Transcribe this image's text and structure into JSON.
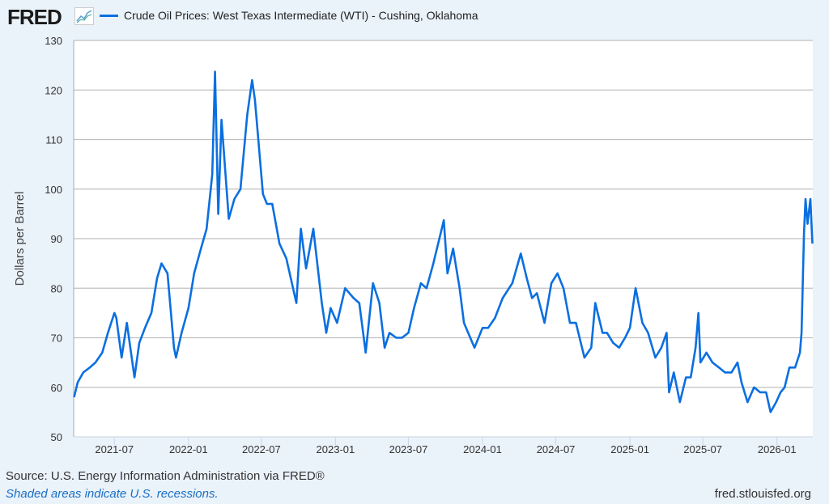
{
  "header": {
    "logo": "FRED",
    "title": "Crude Oil Prices: West Texas Intermediate (WTI) - Cushing, Oklahoma"
  },
  "footer": {
    "source": "Source: U.S. Energy Information Administration via FRED®",
    "recessions": "Shaded areas indicate U.S. recessions.",
    "url": "fred.stlouisfed.org"
  },
  "chart_data": {
    "type": "line",
    "title": "Crude Oil Prices: West Texas Intermediate (WTI) - Cushing, Oklahoma",
    "ylabel": "Dollars per Barrel",
    "xlabel": "",
    "ylim": [
      50,
      130
    ],
    "xlim": [
      "2021-03-22",
      "2026-03-31"
    ],
    "yticks": [
      50,
      60,
      70,
      80,
      90,
      100,
      110,
      120,
      130
    ],
    "xticks": [
      "2021-07",
      "2022-01",
      "2022-07",
      "2023-01",
      "2023-07",
      "2024-01",
      "2024-07",
      "2025-01",
      "2025-07",
      "2026-01"
    ],
    "grid": true,
    "color": "#0a6fe0",
    "series": [
      {
        "name": "Crude Oil Prices: West Texas Intermediate (WTI) - Cushing, Oklahoma",
        "points": [
          [
            "2021-03-23",
            58
          ],
          [
            "2021-04-01",
            61
          ],
          [
            "2021-04-15",
            63
          ],
          [
            "2021-05-01",
            64
          ],
          [
            "2021-05-15",
            65
          ],
          [
            "2021-06-01",
            67
          ],
          [
            "2021-06-15",
            71
          ],
          [
            "2021-07-01",
            75
          ],
          [
            "2021-07-06",
            74
          ],
          [
            "2021-07-19",
            66
          ],
          [
            "2021-08-01",
            73
          ],
          [
            "2021-08-20",
            62
          ],
          [
            "2021-09-01",
            69
          ],
          [
            "2021-09-15",
            72
          ],
          [
            "2021-10-01",
            75
          ],
          [
            "2021-10-15",
            82
          ],
          [
            "2021-10-26",
            85
          ],
          [
            "2021-11-10",
            83
          ],
          [
            "2021-11-26",
            68
          ],
          [
            "2021-12-01",
            66
          ],
          [
            "2021-12-15",
            71
          ],
          [
            "2022-01-01",
            76
          ],
          [
            "2022-01-15",
            83
          ],
          [
            "2022-02-01",
            88
          ],
          [
            "2022-02-15",
            92
          ],
          [
            "2022-03-01",
            103
          ],
          [
            "2022-03-08",
            123.7
          ],
          [
            "2022-03-16",
            95
          ],
          [
            "2022-03-24",
            114
          ],
          [
            "2022-04-11",
            94
          ],
          [
            "2022-04-25",
            98
          ],
          [
            "2022-05-10",
            100
          ],
          [
            "2022-05-27",
            115
          ],
          [
            "2022-06-08",
            122
          ],
          [
            "2022-06-15",
            118
          ],
          [
            "2022-07-05",
            99
          ],
          [
            "2022-07-15",
            97
          ],
          [
            "2022-07-28",
            97
          ],
          [
            "2022-08-15",
            89
          ],
          [
            "2022-09-01",
            86
          ],
          [
            "2022-09-26",
            77
          ],
          [
            "2022-10-07",
            92
          ],
          [
            "2022-10-20",
            84
          ],
          [
            "2022-11-07",
            92
          ],
          [
            "2022-11-28",
            77
          ],
          [
            "2022-12-09",
            71
          ],
          [
            "2022-12-20",
            76
          ],
          [
            "2023-01-05",
            73
          ],
          [
            "2023-01-25",
            80
          ],
          [
            "2023-02-15",
            78
          ],
          [
            "2023-03-01",
            77
          ],
          [
            "2023-03-17",
            67
          ],
          [
            "2023-04-04",
            81
          ],
          [
            "2023-04-20",
            77
          ],
          [
            "2023-05-03",
            68
          ],
          [
            "2023-05-15",
            71
          ],
          [
            "2023-06-01",
            70
          ],
          [
            "2023-06-15",
            70
          ],
          [
            "2023-07-01",
            71
          ],
          [
            "2023-07-15",
            76
          ],
          [
            "2023-08-01",
            81
          ],
          [
            "2023-08-15",
            80
          ],
          [
            "2023-09-01",
            85
          ],
          [
            "2023-09-27",
            93.7
          ],
          [
            "2023-10-06",
            83
          ],
          [
            "2023-10-20",
            88
          ],
          [
            "2023-11-05",
            80
          ],
          [
            "2023-11-16",
            73
          ],
          [
            "2023-12-12",
            68
          ],
          [
            "2024-01-01",
            72
          ],
          [
            "2024-01-15",
            72
          ],
          [
            "2024-02-01",
            74
          ],
          [
            "2024-02-20",
            78
          ],
          [
            "2024-03-15",
            81
          ],
          [
            "2024-04-05",
            87
          ],
          [
            "2024-04-20",
            82
          ],
          [
            "2024-05-03",
            78
          ],
          [
            "2024-05-15",
            79
          ],
          [
            "2024-06-03",
            73
          ],
          [
            "2024-06-20",
            81
          ],
          [
            "2024-07-05",
            83
          ],
          [
            "2024-07-20",
            80
          ],
          [
            "2024-08-05",
            73
          ],
          [
            "2024-08-20",
            73
          ],
          [
            "2024-09-10",
            66
          ],
          [
            "2024-09-27",
            68
          ],
          [
            "2024-10-07",
            77
          ],
          [
            "2024-10-25",
            71
          ],
          [
            "2024-11-05",
            71
          ],
          [
            "2024-11-20",
            69
          ],
          [
            "2024-12-05",
            68
          ],
          [
            "2024-12-20",
            70
          ],
          [
            "2025-01-01",
            72
          ],
          [
            "2025-01-15",
            80
          ],
          [
            "2025-02-01",
            73
          ],
          [
            "2025-02-15",
            71
          ],
          [
            "2025-03-05",
            66
          ],
          [
            "2025-03-20",
            68
          ],
          [
            "2025-04-02",
            71
          ],
          [
            "2025-04-08",
            59
          ],
          [
            "2025-04-20",
            63
          ],
          [
            "2025-05-05",
            57
          ],
          [
            "2025-05-20",
            62
          ],
          [
            "2025-06-01",
            62
          ],
          [
            "2025-06-13",
            68
          ],
          [
            "2025-06-20",
            75
          ],
          [
            "2025-06-25",
            65
          ],
          [
            "2025-07-10",
            67
          ],
          [
            "2025-07-25",
            65
          ],
          [
            "2025-08-10",
            64
          ],
          [
            "2025-08-25",
            63
          ],
          [
            "2025-09-10",
            63
          ],
          [
            "2025-09-25",
            65
          ],
          [
            "2025-10-05",
            61
          ],
          [
            "2025-10-20",
            57
          ],
          [
            "2025-11-05",
            60
          ],
          [
            "2025-11-20",
            59
          ],
          [
            "2025-12-05",
            59
          ],
          [
            "2025-12-16",
            55
          ],
          [
            "2025-12-30",
            57
          ],
          [
            "2026-01-10",
            59
          ],
          [
            "2026-01-20",
            60
          ],
          [
            "2026-02-01",
            64
          ],
          [
            "2026-02-15",
            64
          ],
          [
            "2026-02-27",
            67
          ],
          [
            "2026-03-03",
            71
          ],
          [
            "2026-03-09",
            91
          ],
          [
            "2026-03-13",
            98
          ],
          [
            "2026-03-18",
            93
          ],
          [
            "2026-03-25",
            98
          ],
          [
            "2026-03-30",
            89
          ]
        ]
      }
    ]
  }
}
